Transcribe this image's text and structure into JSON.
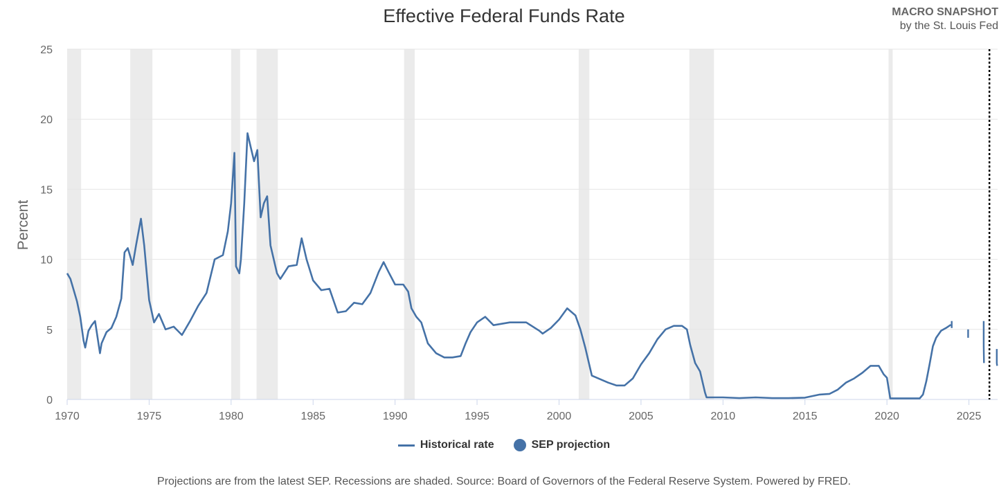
{
  "header": {
    "brand_name": "MACRO SNAPSHOT",
    "brand_sub": "by the St. Louis Fed"
  },
  "colors": {
    "series": "#4572a7",
    "recession": "#ebebeb",
    "grid": "#e6e6e6"
  },
  "chart_data": {
    "type": "line",
    "title": "Effective Federal Funds Rate",
    "ylabel": "Percent",
    "xlabel": "",
    "xlim": [
      1970,
      2026.75
    ],
    "ylim": [
      0,
      25
    ],
    "y_ticks": [
      0,
      5,
      10,
      15,
      20,
      25
    ],
    "x_ticks": [
      1970,
      1975,
      1980,
      1985,
      1990,
      1995,
      2000,
      2005,
      2010,
      2015,
      2020,
      2025
    ],
    "grid": true,
    "legend_placement": "bottom-center",
    "legend": [
      "Historical rate",
      "SEP projection"
    ],
    "recessions": [
      [
        1970.0,
        1970.85
      ],
      [
        1973.85,
        1975.2
      ],
      [
        1980.0,
        1980.55
      ],
      [
        1981.55,
        1982.85
      ],
      [
        1990.55,
        1991.2
      ],
      [
        2001.2,
        2001.85
      ],
      [
        2007.95,
        2009.45
      ],
      [
        2020.1,
        2020.35
      ]
    ],
    "projection_marker_x": 2026.25,
    "series": [
      {
        "name": "Historical rate",
        "x": [
          1970.0,
          1970.2,
          1970.4,
          1970.6,
          1970.8,
          1971.0,
          1971.1,
          1971.3,
          1971.5,
          1971.7,
          1972.0,
          1972.1,
          1972.4,
          1972.7,
          1973.0,
          1973.3,
          1973.5,
          1973.7,
          1974.0,
          1974.2,
          1974.5,
          1974.7,
          1975.0,
          1975.3,
          1975.6,
          1976.0,
          1976.5,
          1977.0,
          1977.5,
          1978.0,
          1978.5,
          1979.0,
          1979.5,
          1979.8,
          1980.0,
          1980.2,
          1980.3,
          1980.5,
          1980.6,
          1980.8,
          1981.0,
          1981.2,
          1981.4,
          1981.6,
          1981.8,
          1982.0,
          1982.2,
          1982.4,
          1982.6,
          1982.8,
          1983.0,
          1983.5,
          1984.0,
          1984.3,
          1984.6,
          1985.0,
          1985.5,
          1986.0,
          1986.5,
          1987.0,
          1987.5,
          1988.0,
          1988.5,
          1989.0,
          1989.3,
          1989.6,
          1990.0,
          1990.5,
          1990.8,
          1991.0,
          1991.3,
          1991.6,
          1992.0,
          1992.5,
          1993.0,
          1993.5,
          1994.0,
          1994.3,
          1994.6,
          1995.0,
          1995.5,
          1996.0,
          1997.0,
          1998.0,
          1998.8,
          1999.0,
          1999.5,
          2000.0,
          2000.5,
          2001.0,
          2001.3,
          2001.6,
          2002.0,
          2003.0,
          2003.5,
          2004.0,
          2004.5,
          2005.0,
          2005.5,
          2006.0,
          2006.5,
          2007.0,
          2007.5,
          2007.8,
          2008.0,
          2008.3,
          2008.6,
          2008.9,
          2009.0,
          2010.0,
          2011.0,
          2012.0,
          2013.0,
          2014.0,
          2015.0,
          2015.9,
          2016.5,
          2017.0,
          2017.5,
          2018.0,
          2018.5,
          2019.0,
          2019.5,
          2019.8,
          2020.0,
          2020.2,
          2020.5,
          2021.0,
          2022.0,
          2022.2,
          2022.4,
          2022.6,
          2022.8,
          2023.0,
          2023.3,
          2023.6,
          2023.9
        ],
        "values": [
          9.0,
          8.6,
          7.8,
          7.0,
          5.9,
          4.2,
          3.7,
          4.9,
          5.3,
          5.6,
          3.3,
          4.0,
          4.8,
          5.1,
          5.9,
          7.2,
          10.5,
          10.8,
          9.6,
          11.0,
          12.9,
          11.0,
          7.1,
          5.5,
          6.1,
          5.0,
          5.2,
          4.6,
          5.6,
          6.7,
          7.6,
          10.0,
          10.3,
          12.0,
          14.0,
          17.6,
          9.5,
          9.0,
          10.0,
          14.0,
          19.0,
          18.0,
          17.0,
          17.8,
          13.0,
          14.0,
          14.5,
          11.0,
          10.0,
          9.0,
          8.6,
          9.5,
          9.6,
          11.5,
          10.0,
          8.5,
          7.8,
          7.9,
          6.2,
          6.3,
          6.9,
          6.8,
          7.6,
          9.1,
          9.8,
          9.1,
          8.2,
          8.2,
          7.7,
          6.5,
          5.9,
          5.5,
          4.0,
          3.3,
          3.0,
          3.0,
          3.1,
          4.0,
          4.8,
          5.5,
          5.9,
          5.3,
          5.5,
          5.5,
          4.9,
          4.7,
          5.1,
          5.7,
          6.5,
          6.0,
          5.0,
          3.7,
          1.7,
          1.2,
          1.0,
          1.0,
          1.5,
          2.5,
          3.3,
          4.3,
          5.0,
          5.25,
          5.25,
          5.0,
          3.9,
          2.6,
          2.0,
          0.5,
          0.15,
          0.15,
          0.1,
          0.15,
          0.1,
          0.1,
          0.13,
          0.35,
          0.4,
          0.7,
          1.2,
          1.5,
          1.9,
          2.4,
          2.4,
          1.8,
          1.55,
          0.08,
          0.08,
          0.08,
          0.08,
          0.35,
          1.3,
          2.5,
          3.8,
          4.4,
          4.9,
          5.1,
          5.33
        ]
      },
      {
        "name": "SEP projection",
        "segments": [
          {
            "x": [
              2023.95,
              2023.95
            ],
            "values": [
              5.1,
              5.6
            ]
          },
          {
            "x": [
              2024.95,
              2024.95
            ],
            "values": [
              4.4,
              5.0
            ]
          },
          {
            "x": [
              2025.9,
              2025.9,
              2025.92
            ],
            "values": [
              5.6,
              3.8,
              2.6
            ]
          },
          {
            "x": [
              2026.7,
              2026.7,
              2026.72
            ],
            "values": [
              3.6,
              2.6,
              2.4
            ]
          }
        ]
      }
    ]
  },
  "legend_labels": {
    "historical": "Historical rate",
    "projection": "SEP projection"
  },
  "footnote": "Projections are from the latest SEP. Recessions are shaded. Source: Board of Governors of the Federal Reserve System. Powered by FRED."
}
